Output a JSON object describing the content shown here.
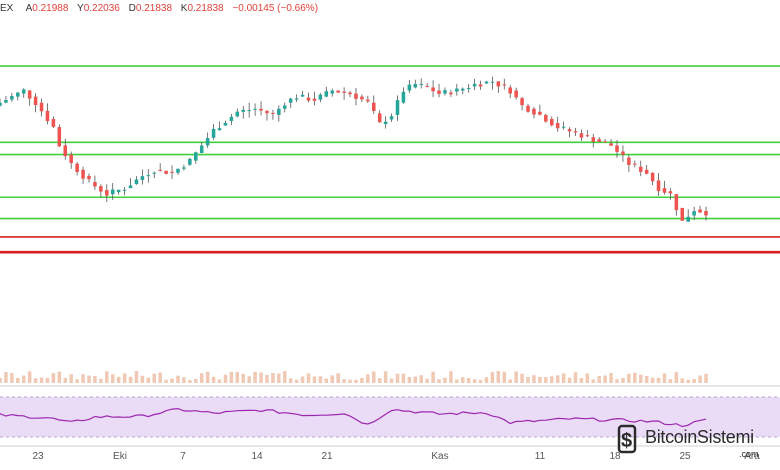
{
  "legend": {
    "symbol_suffix": "EX",
    "open_key": "A",
    "open": "0.21988",
    "high_key": "Y",
    "high": "0.22036",
    "low_key": "D",
    "low": "0.21838",
    "close_key": "K",
    "close": "0.21838",
    "change": "−0.00145 (−0.66%)"
  },
  "colors": {
    "up": "#26a69a",
    "down": "#ef5350",
    "wick": "#555555",
    "support_green": "#3fcf3f",
    "resistance_red": "#d62020",
    "rsi_line": "#9c27b0",
    "rsi_band": "#eadcf7",
    "volume": "#f0c9b5"
  },
  "x_axis": {
    "labels": [
      "23",
      "Eki",
      "7",
      "14",
      "21",
      "Kas",
      "11",
      "18",
      "25",
      "Ara"
    ]
  },
  "levels": {
    "green": [
      0.98,
      0.73,
      0.69,
      0.55,
      0.48
    ],
    "red": [
      0.42,
      0.37
    ]
  },
  "chart_data": {
    "type": "candlestick",
    "title": "",
    "xlabel": "",
    "ylabel": "",
    "x": [
      "23",
      "Eki",
      "7",
      "14",
      "21",
      "Kas",
      "11",
      "18",
      "25",
      "Ara"
    ],
    "price_anchors": [
      [
        0,
        0.86
      ],
      [
        4,
        0.9
      ],
      [
        6,
        0.86
      ],
      [
        9,
        0.78
      ],
      [
        10,
        0.72
      ],
      [
        12,
        0.66
      ],
      [
        15,
        0.6
      ],
      [
        18,
        0.56
      ],
      [
        21,
        0.58
      ],
      [
        24,
        0.62
      ],
      [
        26,
        0.64
      ],
      [
        29,
        0.63
      ],
      [
        32,
        0.67
      ],
      [
        34,
        0.72
      ],
      [
        36,
        0.77
      ],
      [
        38,
        0.8
      ],
      [
        40,
        0.83
      ],
      [
        43,
        0.84
      ],
      [
        46,
        0.82
      ],
      [
        48,
        0.86
      ],
      [
        50,
        0.88
      ],
      [
        53,
        0.87
      ],
      [
        56,
        0.9
      ],
      [
        59,
        0.89
      ],
      [
        62,
        0.86
      ],
      [
        64,
        0.79
      ],
      [
        66,
        0.82
      ],
      [
        68,
        0.9
      ],
      [
        70,
        0.92
      ],
      [
        72,
        0.91
      ],
      [
        74,
        0.89
      ],
      [
        77,
        0.9
      ],
      [
        80,
        0.92
      ],
      [
        83,
        0.93
      ],
      [
        86,
        0.9
      ],
      [
        88,
        0.85
      ],
      [
        91,
        0.82
      ],
      [
        94,
        0.78
      ],
      [
        97,
        0.76
      ],
      [
        100,
        0.74
      ],
      [
        103,
        0.72
      ],
      [
        106,
        0.66
      ],
      [
        109,
        0.63
      ],
      [
        111,
        0.58
      ],
      [
        113,
        0.56
      ],
      [
        115,
        0.47
      ],
      [
        117,
        0.51
      ],
      [
        119,
        0.5
      ]
    ],
    "rsi_anchors": [
      [
        0,
        0.55
      ],
      [
        8,
        0.48
      ],
      [
        12,
        0.35
      ],
      [
        16,
        0.5
      ],
      [
        24,
        0.52
      ],
      [
        30,
        0.7
      ],
      [
        36,
        0.6
      ],
      [
        44,
        0.68
      ],
      [
        52,
        0.55
      ],
      [
        58,
        0.6
      ],
      [
        62,
        0.3
      ],
      [
        66,
        0.7
      ],
      [
        74,
        0.58
      ],
      [
        82,
        0.62
      ],
      [
        86,
        0.35
      ],
      [
        96,
        0.45
      ],
      [
        104,
        0.42
      ],
      [
        110,
        0.38
      ],
      [
        115,
        0.28
      ],
      [
        119,
        0.42
      ]
    ]
  },
  "watermark": {
    "brand": "BitcoinSistemi",
    "suffix": ".com",
    "icon": "bitcoin-logo-icon"
  }
}
